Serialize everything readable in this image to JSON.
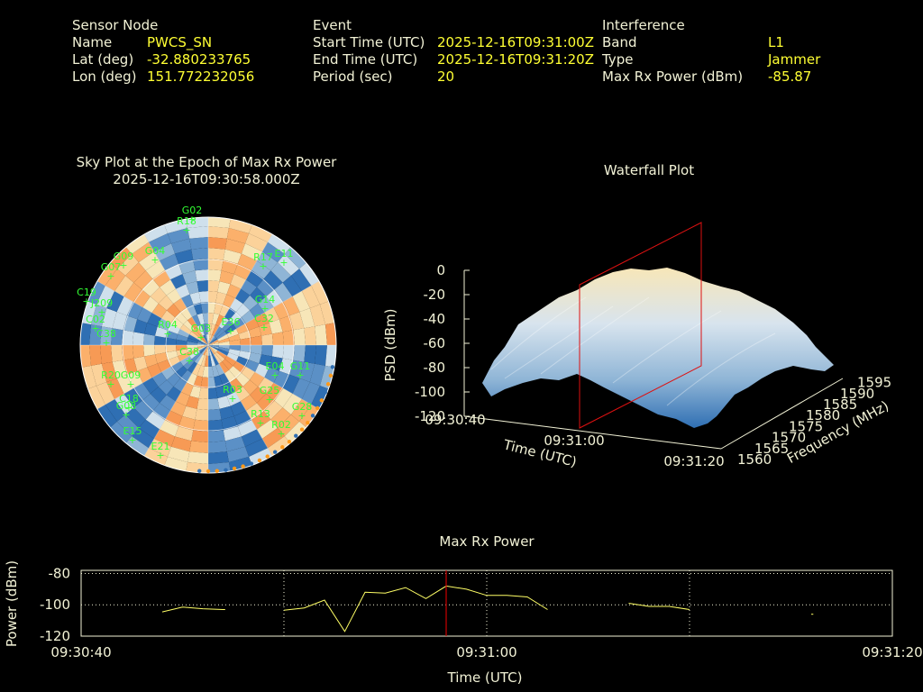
{
  "header": {
    "sensor": {
      "heading": "Sensor Node",
      "rows": [
        {
          "label": "Name",
          "value": "PWCS_SN"
        },
        {
          "label": "Lat (deg)",
          "value": "-32.880233765"
        },
        {
          "label": "Lon (deg)",
          "value": "151.772232056"
        }
      ]
    },
    "event": {
      "heading": "Event",
      "rows": [
        {
          "label": "Start Time (UTC)",
          "value": "2025-12-16T09:31:00Z"
        },
        {
          "label": "End Time (UTC)",
          "value": "2025-12-16T09:31:20Z"
        },
        {
          "label": "Period (sec)",
          "value": "20"
        }
      ]
    },
    "interference": {
      "heading": "Interference",
      "rows": [
        {
          "label": "Band",
          "value": "L1"
        },
        {
          "label": "Type",
          "value": "Jammer"
        },
        {
          "label": "Max Rx Power (dBm)",
          "value": "-85.87"
        }
      ]
    }
  },
  "colors": {
    "label": "#f2f2d6",
    "value": "#ffff33",
    "satellite": "#33ff33",
    "line": "#ffff66",
    "marker": "#cc0000",
    "low_power": "#2f6fb3",
    "high_power": "#f7e6b8",
    "mid_power": "#fbb06b"
  },
  "chart_data": [
    {
      "type": "scatter",
      "title": "Sky Plot at the Epoch of Max Rx Power",
      "subtitle": "2025-12-16T09:30:58.000Z",
      "satellites": [
        "G02",
        "R18",
        "G04",
        "G09",
        "G07",
        "C19",
        "J209",
        "C02",
        "C38",
        "R04",
        "G03",
        "E36",
        "C32",
        "C38",
        "R20",
        "G09",
        "C18",
        "G08",
        "E15",
        "E21",
        "R17",
        "E11",
        "G14",
        "R03",
        "G25",
        "R13",
        "R02",
        "G28",
        "E04",
        "G11"
      ]
    },
    {
      "type": "heatmap",
      "title": "Waterfall Plot",
      "xlabel": "Frequency (MHz)",
      "ylabel": "Time (UTC)",
      "zlabel": "PSD (dBm)",
      "x_ticks": [
        "1560",
        "1565",
        "1570",
        "1575",
        "1580",
        "1585",
        "1590",
        "1595"
      ],
      "y_ticks": [
        "09:30:40",
        "09:31:00",
        "09:31:20"
      ],
      "z_ticks": [
        "0",
        "-20",
        "-40",
        "-60",
        "-80",
        "-100",
        "-120"
      ],
      "zlim": [
        -120,
        0
      ]
    },
    {
      "type": "line",
      "title": "Max Rx Power",
      "xlabel": "Time (UTC)",
      "ylabel": "Power (dBm)",
      "x_ticks": [
        "09:30:40",
        "09:31:00",
        "09:31:20"
      ],
      "y_ticks": [
        "-80",
        "-100",
        "-120"
      ],
      "ylim": [
        -120,
        -78
      ],
      "xlim_seconds": [
        0,
        40
      ],
      "marker_time": "09:30:58",
      "series": [
        {
          "segments": [
            [
              [
                4,
                -104.5
              ],
              [
                5,
                -101.5
              ],
              [
                6,
                -102.5
              ],
              [
                7,
                -103
              ],
              [
                7.1,
                -103
              ]
            ],
            [
              [
                10,
                -103.5
              ],
              [
                11,
                -102
              ],
              [
                12,
                -97
              ],
              [
                13,
                -117
              ],
              [
                14,
                -92
              ],
              [
                15,
                -92.5
              ],
              [
                16,
                -89
              ],
              [
                17,
                -96
              ],
              [
                18,
                -88
              ],
              [
                19,
                -90
              ],
              [
                20,
                -94
              ],
              [
                21,
                -94
              ],
              [
                22,
                -95
              ],
              [
                23,
                -103
              ]
            ],
            [
              [
                27,
                -99
              ],
              [
                28,
                -101
              ],
              [
                29,
                -101
              ],
              [
                30,
                -103
              ]
            ],
            [
              [
                36,
                -106
              ],
              [
                36.1,
                -106
              ]
            ]
          ]
        }
      ]
    }
  ]
}
